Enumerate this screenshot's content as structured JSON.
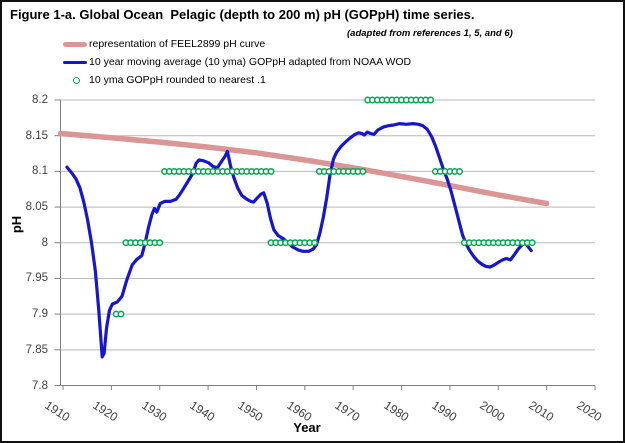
{
  "figure": {
    "title": "Figure 1-a. Global Ocean  Pelagic (depth to 200 m) pH (GOPpH) time series.",
    "subtitle": "(adapted from references 1, 5, and 6)"
  },
  "legend": {
    "items": [
      {
        "swatch": "thick-pink-line",
        "color": "#d99694",
        "label": "representation of FEEL2899 pH curve"
      },
      {
        "swatch": "blue-line",
        "color": "#1616d0",
        "label": "10 year moving average (10 yma) GOPpH adapted from NOAA WOD"
      },
      {
        "swatch": "green-open-circle",
        "color": "#00a64f",
        "label": "10 yma GOPpH rounded to nearest .1"
      }
    ]
  },
  "chart_data": {
    "type": "line",
    "title": "Figure 1-a. Global Ocean Pelagic (depth to 200 m) pH (GOPpH) time series.",
    "subtitle": "(adapted from references 1, 5, and 6)",
    "xlabel": "Year",
    "ylabel": "pH",
    "xlim": [
      1910,
      2020
    ],
    "ylim": [
      7.8,
      8.2
    ],
    "grid": "horizontal",
    "legend_position": "top-left",
    "x_ticks": [
      1910,
      1920,
      1930,
      1940,
      1950,
      1960,
      1970,
      1980,
      1990,
      2000,
      2010,
      2020
    ],
    "y_ticks": [
      {
        "value": 8.2,
        "label": "8.2"
      },
      {
        "value": 8.15,
        "label": "8.15"
      },
      {
        "value": 8.1,
        "label": "8.1"
      },
      {
        "value": 8.05,
        "label": "8.05"
      },
      {
        "value": 8.0,
        "label": "8"
      },
      {
        "value": 7.95,
        "label": "7.95"
      },
      {
        "value": 7.9,
        "label": "7.9"
      },
      {
        "value": 7.85,
        "label": "7.85"
      },
      {
        "value": 7.8,
        "label": "7.8"
      }
    ],
    "colors": {
      "grid": "#b9b9b9",
      "axis": "#808080",
      "tick_label": "#404040",
      "feel_curve": "#d99694",
      "gopph_curve": "#1616d0",
      "rounded_markers": "#00a64f"
    },
    "series": [
      {
        "name": "representation of FEEL2899 pH curve",
        "type": "line",
        "color": "#d99694",
        "stroke_width": 5.5,
        "points": [
          [
            1909.5,
            8.153
          ],
          [
            1920,
            8.147
          ],
          [
            1930,
            8.141
          ],
          [
            1940,
            8.134
          ],
          [
            1950,
            8.126
          ],
          [
            1960,
            8.116
          ],
          [
            1970,
            8.105
          ],
          [
            1980,
            8.093
          ],
          [
            1990,
            8.08
          ],
          [
            2000,
            8.067
          ],
          [
            2010,
            8.055
          ]
        ]
      },
      {
        "name": "10 year moving average (10 yma) GOPpH adapted from NOAA WOD",
        "type": "line",
        "color": "#1616d0",
        "stroke_width": 3.2,
        "points": [
          [
            1910.8,
            8.106
          ],
          [
            1911.9,
            8.097
          ],
          [
            1912.7,
            8.089
          ],
          [
            1913.5,
            8.077
          ],
          [
            1914.3,
            8.057
          ],
          [
            1915.1,
            8.031
          ],
          [
            1915.9,
            8.0
          ],
          [
            1916.7,
            7.96
          ],
          [
            1917.4,
            7.905
          ],
          [
            1918.1,
            7.84
          ],
          [
            1918.5,
            7.845
          ],
          [
            1919.0,
            7.88
          ],
          [
            1919.6,
            7.905
          ],
          [
            1920.2,
            7.914
          ],
          [
            1921.2,
            7.917
          ],
          [
            1922.2,
            7.925
          ],
          [
            1923.2,
            7.948
          ],
          [
            1924.3,
            7.969
          ],
          [
            1925.3,
            7.977
          ],
          [
            1926.3,
            7.982
          ],
          [
            1927.0,
            8.0
          ],
          [
            1927.7,
            8.022
          ],
          [
            1928.4,
            8.04
          ],
          [
            1928.9,
            8.048
          ],
          [
            1929.4,
            8.043
          ],
          [
            1930.1,
            8.055
          ],
          [
            1931.0,
            8.058
          ],
          [
            1932.2,
            8.058
          ],
          [
            1933.4,
            8.061
          ],
          [
            1934.2,
            8.068
          ],
          [
            1935.2,
            8.079
          ],
          [
            1936.2,
            8.09
          ],
          [
            1936.9,
            8.098
          ],
          [
            1937.5,
            8.111
          ],
          [
            1938.1,
            8.116
          ],
          [
            1939.0,
            8.115
          ],
          [
            1940.1,
            8.112
          ],
          [
            1941.0,
            8.107
          ],
          [
            1941.9,
            8.105
          ],
          [
            1942.8,
            8.114
          ],
          [
            1943.5,
            8.121
          ],
          [
            1944.0,
            8.128
          ],
          [
            1944.7,
            8.106
          ],
          [
            1945.3,
            8.092
          ],
          [
            1946.1,
            8.077
          ],
          [
            1947.0,
            8.066
          ],
          [
            1948.0,
            8.061
          ],
          [
            1948.8,
            8.058
          ],
          [
            1949.4,
            8.057
          ],
          [
            1950.2,
            8.063
          ],
          [
            1950.9,
            8.068
          ],
          [
            1951.5,
            8.07
          ],
          [
            1952.2,
            8.056
          ],
          [
            1952.9,
            8.034
          ],
          [
            1953.6,
            8.018
          ],
          [
            1954.5,
            8.01
          ],
          [
            1955.5,
            8.006
          ],
          [
            1956.5,
            8.0
          ],
          [
            1957.5,
            7.994
          ],
          [
            1958.6,
            7.99
          ],
          [
            1959.6,
            7.988
          ],
          [
            1960.8,
            7.988
          ],
          [
            1961.7,
            7.991
          ],
          [
            1962.4,
            7.997
          ],
          [
            1963.1,
            8.013
          ],
          [
            1963.8,
            8.035
          ],
          [
            1964.5,
            8.062
          ],
          [
            1965.2,
            8.095
          ],
          [
            1965.9,
            8.117
          ],
          [
            1966.6,
            8.127
          ],
          [
            1967.5,
            8.135
          ],
          [
            1968.4,
            8.141
          ],
          [
            1969.4,
            8.147
          ],
          [
            1970.4,
            8.152
          ],
          [
            1971.1,
            8.154
          ],
          [
            1971.8,
            8.153
          ],
          [
            1972.3,
            8.151
          ],
          [
            1972.9,
            8.155
          ],
          [
            1973.6,
            8.153
          ],
          [
            1974.3,
            8.152
          ],
          [
            1975.1,
            8.158
          ],
          [
            1976.2,
            8.162
          ],
          [
            1977.3,
            8.164
          ],
          [
            1978.4,
            8.165
          ],
          [
            1979.6,
            8.167
          ],
          [
            1981.0,
            8.166
          ],
          [
            1982.3,
            8.167
          ],
          [
            1983.5,
            8.166
          ],
          [
            1984.4,
            8.164
          ],
          [
            1985.3,
            8.159
          ],
          [
            1986.2,
            8.149
          ],
          [
            1987.0,
            8.136
          ],
          [
            1987.8,
            8.12
          ],
          [
            1988.6,
            8.104
          ],
          [
            1989.4,
            8.09
          ],
          [
            1990.2,
            8.073
          ],
          [
            1991.0,
            8.053
          ],
          [
            1991.8,
            8.032
          ],
          [
            1992.6,
            8.011
          ],
          [
            1993.3,
            7.999
          ],
          [
            1994.1,
            7.989
          ],
          [
            1995.0,
            7.98
          ],
          [
            1995.8,
            7.974
          ],
          [
            1996.6,
            7.97
          ],
          [
            1997.4,
            7.967
          ],
          [
            1998.3,
            7.966
          ],
          [
            1999.2,
            7.969
          ],
          [
            2000.1,
            7.973
          ],
          [
            2000.9,
            7.976
          ],
          [
            2001.7,
            7.978
          ],
          [
            2002.5,
            7.976
          ],
          [
            2003.3,
            7.983
          ],
          [
            2004.1,
            7.991
          ],
          [
            2004.9,
            7.997
          ],
          [
            2005.4,
            8.0
          ],
          [
            2006.0,
            7.996
          ],
          [
            2006.8,
            7.989
          ]
        ]
      },
      {
        "name": "10 yma GOPpH rounded to nearest .1",
        "type": "scatter",
        "marker": "open-circle",
        "color": "#00a64f",
        "groups": [
          {
            "value": 7.9,
            "year_start": 1921,
            "year_end": 1922
          },
          {
            "value": 8.0,
            "year_start": 1923,
            "year_end": 1930
          },
          {
            "value": 8.1,
            "year_start": 1931,
            "year_end": 1953
          },
          {
            "value": 8.0,
            "year_start": 1953,
            "year_end": 1962
          },
          {
            "value": 8.1,
            "year_start": 1963,
            "year_end": 1972
          },
          {
            "value": 8.2,
            "year_start": 1973,
            "year_end": 1986
          },
          {
            "value": 8.1,
            "year_start": 1987,
            "year_end": 1992
          },
          {
            "value": 8.0,
            "year_start": 1993,
            "year_end": 2007
          }
        ]
      }
    ]
  }
}
